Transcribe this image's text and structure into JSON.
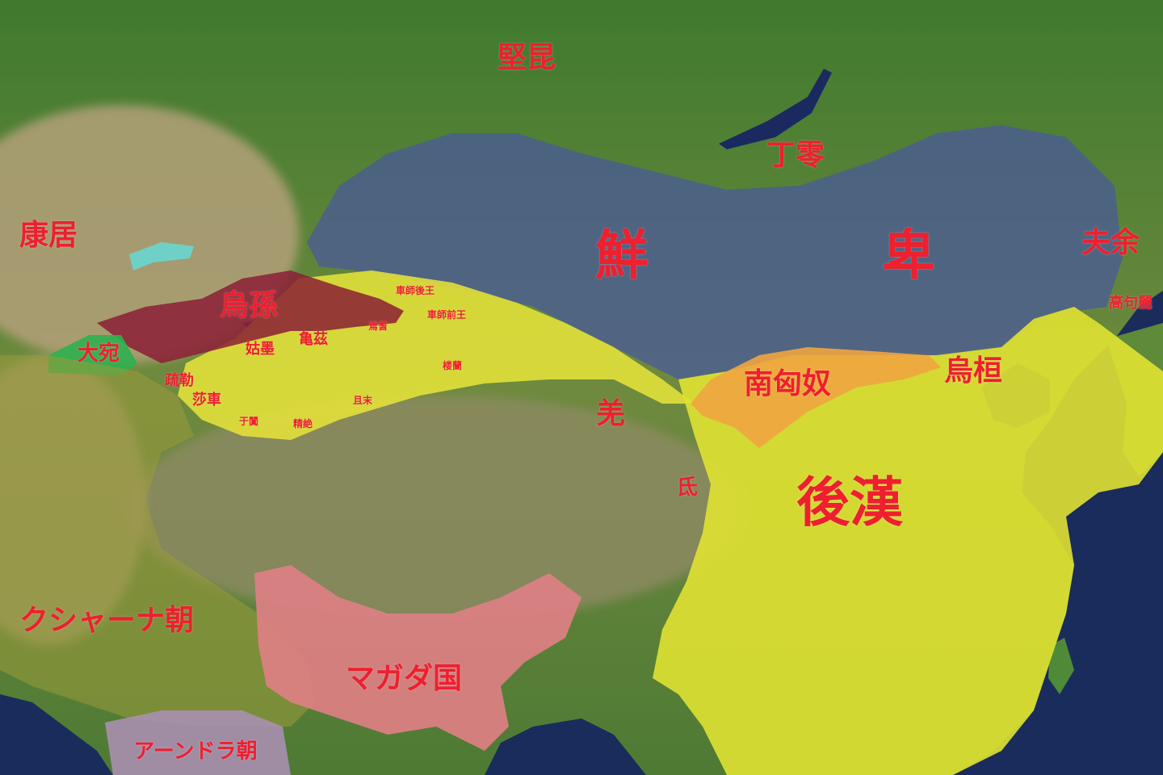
{
  "map": {
    "colors": {
      "sea": "#1a2c5c",
      "forest": "#3f7a2e",
      "steppe": "#6f8a3e",
      "desert": "#b8a27a",
      "plateau": "#8e8a64",
      "xianbei": "#4a5a9a",
      "later_han": "#e8e636",
      "tarim_states": "#e9e53a",
      "wusun": "#8b1f35",
      "dayuan": "#2fb04f",
      "magadha": "#e07f86",
      "kushan": "#9b9a3a",
      "andhra": "#a98fb0",
      "southern_xiongnu": "#f0a540",
      "label": "#ee1f2f"
    },
    "labels": {
      "xianbei_1": "鮮",
      "xianbei_2": "卑",
      "later_han": "後漢",
      "kushan": "クシャーナ朝",
      "magadha": "マガダ国",
      "andhra": "アーンドラ朝",
      "kangju": "康居",
      "jiankun": "堅昆",
      "dingling": "丁零",
      "fuyu": "夫余",
      "goguryeo": "高句麗",
      "wuhuan": "烏桓",
      "southern_xiongnu": "南匈奴",
      "qiang": "羌",
      "di": "氐",
      "wusun": "烏孫",
      "dayuan": "大宛",
      "jushi_hou": "車師後王",
      "jushi_qian": "車師前王",
      "yanqi": "焉耆",
      "qiuci": "亀茲",
      "gumo": "姑墨",
      "loulan": "楼蘭",
      "shule": "疏勒",
      "shache": "莎車",
      "yutian": "于闐",
      "jingjue": "精絶",
      "qiemo": "且末"
    }
  }
}
